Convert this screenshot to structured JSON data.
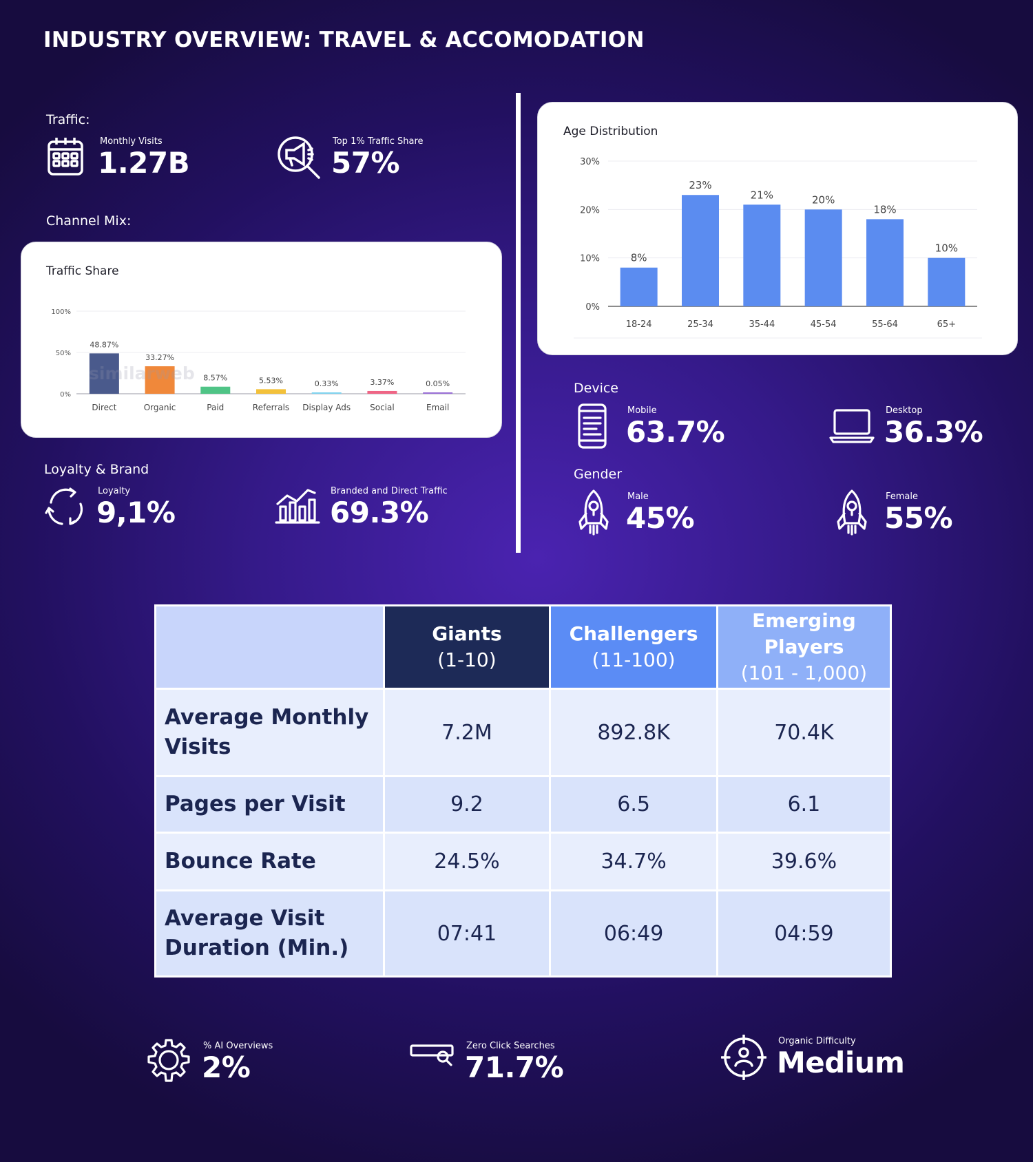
{
  "title": "INDUSTRY OVERVIEW: TRAVEL & ACCOMODATION",
  "traffic": {
    "section": "Traffic:",
    "monthly_visits_label": "Monthly Visits",
    "monthly_visits_value": "1.27B",
    "top1_label": "Top 1% Traffic Share",
    "top1_value": "57%"
  },
  "channel_mix": {
    "section": "Channel Mix:",
    "card_title": "Traffic Share",
    "watermark": "similarweb"
  },
  "loyalty": {
    "section": "Loyalty & Brand",
    "loyalty_label": "Loyalty",
    "loyalty_value": "9,1%",
    "branded_label": "Branded and Direct Traffic",
    "branded_value": "69.3%"
  },
  "device": {
    "section": "Device",
    "mobile_label": "Mobile",
    "mobile_value": "63.7%",
    "desktop_label": "Desktop",
    "desktop_value": "36.3%"
  },
  "gender": {
    "section": "Gender",
    "male_label": "Male",
    "male_value": "45%",
    "female_label": "Female",
    "female_value": "55%"
  },
  "table": {
    "headers": [
      {
        "name": "Giants",
        "range": "(1-10)"
      },
      {
        "name": "Challengers",
        "range": "(11-100)"
      },
      {
        "name": "Emerging Players",
        "range": "(101 - 1,000)"
      }
    ],
    "rows": [
      {
        "label": "Average Monthly Visits",
        "values": [
          "7.2M",
          "892.8K",
          "70.4K"
        ]
      },
      {
        "label": "Pages per Visit",
        "values": [
          "9.2",
          "6.5",
          "6.1"
        ]
      },
      {
        "label": "Bounce Rate",
        "values": [
          "24.5%",
          "34.7%",
          "39.6%"
        ]
      },
      {
        "label": "Average Visit Duration (Min.)",
        "values": [
          "07:41",
          "06:49",
          "04:59"
        ]
      }
    ]
  },
  "footer": {
    "ai_label": "% AI Overviews",
    "ai_value": "2%",
    "zero_label": "Zero Click Searches",
    "zero_value": "71.7%",
    "difficulty_label": "Organic Difficulty",
    "difficulty_value": "Medium"
  },
  "chart_data": [
    {
      "type": "bar",
      "title": "Traffic Share",
      "categories": [
        "Direct",
        "Organic",
        "Paid",
        "Referrals",
        "Display Ads",
        "Social",
        "Email"
      ],
      "values": [
        48.87,
        33.27,
        8.57,
        5.53,
        0.33,
        3.37,
        0.05
      ],
      "data_labels": [
        "48.87%",
        "33.27%",
        "8.57%",
        "5.53%",
        "0.33%",
        "3.37%",
        "0.05%"
      ],
      "colors": [
        "#4a5a8c",
        "#f0883a",
        "#4fc486",
        "#f3c13a",
        "#7fd4f0",
        "#ef6585",
        "#9a6fd6"
      ],
      "yticks": [
        "0%",
        "50%",
        "100%"
      ],
      "ylim": [
        0,
        100
      ],
      "grid": true
    },
    {
      "type": "bar",
      "title": "Age Distribution",
      "categories": [
        "18-24",
        "25-34",
        "35-44",
        "45-54",
        "55-64",
        "65+"
      ],
      "values": [
        8,
        23,
        21,
        20,
        18,
        10
      ],
      "data_labels": [
        "8%",
        "23%",
        "21%",
        "20%",
        "18%",
        "10%"
      ],
      "color": "#5b8cf0",
      "yticks": [
        "0%",
        "10%",
        "20%",
        "30%"
      ],
      "ylim": [
        0,
        30
      ],
      "grid": true
    }
  ]
}
